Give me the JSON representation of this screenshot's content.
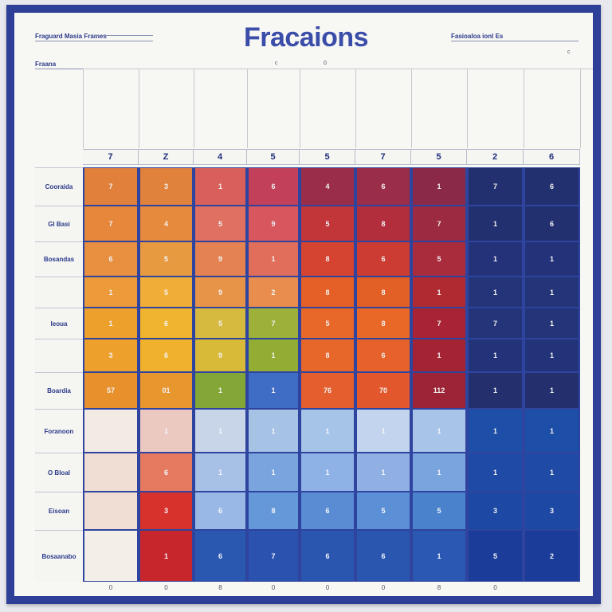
{
  "title": "Fracaions",
  "header_left": {
    "top": "Fraguard Masia Frames",
    "bottom": "Fraana"
  },
  "header_right": {
    "top": "Fasioaloa ionl Es"
  },
  "tiny_marks": [
    "c",
    "0"
  ],
  "column_numbers": [
    "7",
    "Z",
    "4",
    "5",
    "5",
    "7",
    "5",
    "2",
    "6"
  ],
  "row_labels": [
    "Cooraida",
    "Gl Basi",
    "Bosandas",
    "",
    "Ieoua",
    "",
    "Boardia",
    "Foranoon",
    "O Bloal",
    "Eisoan",
    "Bosaanabo"
  ],
  "cells": [
    [
      "7",
      "3",
      "1",
      "6",
      "4",
      "6",
      "1",
      "7",
      "6"
    ],
    [
      "7",
      "4",
      "5",
      "9",
      "5",
      "8",
      "7",
      "1",
      "6"
    ],
    [
      "6",
      "5",
      "9",
      "1",
      "8",
      "6",
      "5",
      "1",
      "1"
    ],
    [
      "1",
      "5",
      "9",
      "2",
      "8",
      "8",
      "1",
      "1",
      "1"
    ],
    [
      "1",
      "6",
      "5",
      "7",
      "5",
      "8",
      "7",
      "7",
      "1"
    ],
    [
      "3",
      "6",
      "9",
      "1",
      "8",
      "6",
      "1",
      "1",
      "1"
    ],
    [
      "57",
      "01",
      "1",
      "1",
      "76",
      "70",
      "112",
      "1",
      "1"
    ],
    [
      "",
      "1",
      "1",
      "1",
      "1",
      "1",
      "1",
      "1",
      "1"
    ],
    [
      "",
      "6",
      "1",
      "1",
      "1",
      "1",
      "1",
      "1",
      "1"
    ],
    [
      "",
      "3",
      "6",
      "8",
      "6",
      "5",
      "5",
      "3",
      "3"
    ],
    [
      "",
      "1",
      "6",
      "7",
      "6",
      "6",
      "1",
      "5",
      "2"
    ]
  ],
  "colors": [
    [
      "#e0803a",
      "#e0823c",
      "#d9605a",
      "#c2405a",
      "#9a2e48",
      "#9a2e48",
      "#8a2a48",
      "#23306f",
      "#23306f"
    ],
    [
      "#e6873c",
      "#e68a3e",
      "#e07062",
      "#d8575e",
      "#c2363a",
      "#b22e3c",
      "#9c2a40",
      "#22306f",
      "#22306f"
    ],
    [
      "#e88f40",
      "#e89a40",
      "#e48252",
      "#e06e5a",
      "#d44430",
      "#cc3c32",
      "#a82c3c",
      "#24327a",
      "#24327a"
    ],
    [
      "#ec9a3a",
      "#f0ae38",
      "#e89448",
      "#e88d4e",
      "#e56026",
      "#e25f26",
      "#b02a32",
      "#243478",
      "#243478"
    ],
    [
      "#eea02c",
      "#f0b42e",
      "#d6ba40",
      "#9cb03a",
      "#e8682a",
      "#e96828",
      "#a82434",
      "#243478",
      "#243478"
    ],
    [
      "#eea02c",
      "#f0b22c",
      "#d8ba38",
      "#92ac34",
      "#e7662a",
      "#e6622a",
      "#a42434",
      "#23337a",
      "#23337a"
    ],
    [
      "#e8902c",
      "#e8962e",
      "#84a636",
      "#3f6cc4",
      "#e45e2e",
      "#e2582c",
      "#9c2436",
      "#24306e",
      "#24306e"
    ],
    [
      "#f2ebe4",
      "#ecc9c0",
      "#c8d4e8",
      "#a6c2e4",
      "#a6c4e8",
      "#c2d4ee",
      "#a8c4e8",
      "#1d4ea8",
      "#1d4ea8"
    ],
    [
      "#f0ddd4",
      "#e67a60",
      "#a6c0e6",
      "#7aa4de",
      "#8fb2e6",
      "#90b0e4",
      "#7aa4de",
      "#1f4aa6",
      "#1f4aa6"
    ],
    [
      "#f0ddd4",
      "#d8322c",
      "#9ab8e6",
      "#6498d8",
      "#5a8cd4",
      "#5c90d6",
      "#4a82cc",
      "#1d48a4",
      "#1d48a4"
    ],
    [
      "#f3eee8",
      "#c6262c",
      "#2a58b0",
      "#2a52ae",
      "#2a56b0",
      "#2a56b0",
      "#2a58b2",
      "#1c3c9a",
      "#1c3c9a"
    ]
  ],
  "light_rows": [
    7,
    8,
    9,
    10
  ],
  "footer_marks": [
    "0",
    "0",
    "8",
    "0",
    "0",
    "0",
    "8",
    "0"
  ]
}
